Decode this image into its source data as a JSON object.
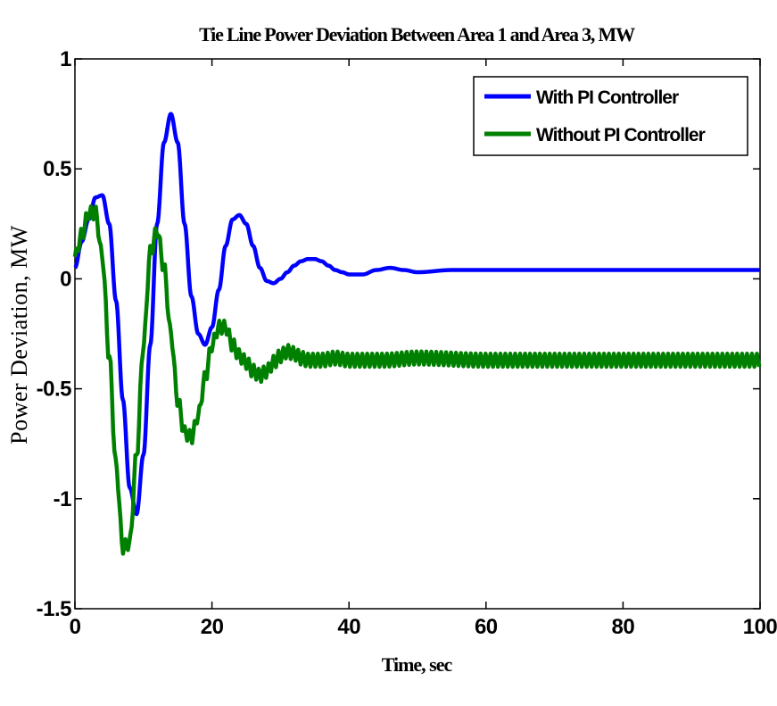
{
  "chart_data": {
    "type": "line",
    "title": "Tie Line Power Deviation Between Area 1 and Area 3, MW",
    "xlabel": "Time, sec",
    "ylabel": "Power Deviation, MW",
    "xlim": [
      0,
      100
    ],
    "ylim": [
      -1.5,
      1
    ],
    "xticks": [
      0,
      20,
      40,
      60,
      80,
      100
    ],
    "xtick_labels": [
      "0",
      "20",
      "40",
      "60",
      "80",
      "100"
    ],
    "yticks": [
      -1.5,
      -1,
      -0.5,
      0,
      0.5,
      1
    ],
    "ytick_labels": [
      "-1.5",
      "-1",
      "-0.5",
      "0",
      "0.5",
      "1"
    ],
    "grid": false,
    "legend_position": "top-right",
    "series": [
      {
        "name": "With PI Controller",
        "color": "#0000ff",
        "x": [
          0,
          1,
          2,
          3,
          4,
          5,
          6,
          7,
          8,
          9,
          10,
          11,
          12,
          13,
          14,
          15,
          16,
          17,
          18,
          19,
          20,
          21,
          22,
          23,
          24,
          25,
          26,
          27,
          28,
          29,
          30,
          31,
          32,
          33,
          34,
          35,
          36,
          37,
          38,
          39,
          40,
          42,
          44,
          46,
          48,
          50,
          55,
          60,
          70,
          80,
          90,
          100
        ],
        "y": [
          0.05,
          0.17,
          0.27,
          0.37,
          0.38,
          0.25,
          -0.1,
          -0.55,
          -0.95,
          -1.07,
          -0.8,
          -0.3,
          0.25,
          0.62,
          0.75,
          0.62,
          0.25,
          -0.08,
          -0.25,
          -0.3,
          -0.22,
          -0.05,
          0.15,
          0.27,
          0.29,
          0.25,
          0.15,
          0.05,
          -0.01,
          -0.02,
          0.0,
          0.03,
          0.06,
          0.08,
          0.09,
          0.09,
          0.08,
          0.06,
          0.04,
          0.03,
          0.02,
          0.02,
          0.04,
          0.05,
          0.04,
          0.03,
          0.04,
          0.04,
          0.04,
          0.04,
          0.04,
          0.04
        ]
      },
      {
        "name": "Without PI Controller",
        "color": "#008000",
        "x": [
          0,
          1,
          2,
          3,
          4,
          5,
          6,
          7,
          8,
          9,
          10,
          11,
          12,
          13,
          14,
          15,
          16,
          17,
          18,
          19,
          20,
          21,
          22,
          23,
          24,
          25,
          26,
          27,
          28,
          29,
          30,
          31,
          32,
          33,
          34,
          35,
          36,
          38,
          40,
          45,
          50,
          60,
          70,
          80,
          90,
          100
        ],
        "y": [
          0.1,
          0.2,
          0.3,
          0.3,
          0.1,
          -0.35,
          -0.85,
          -1.22,
          -1.2,
          -0.8,
          -0.3,
          0.12,
          0.22,
          0.05,
          -0.25,
          -0.55,
          -0.7,
          -0.72,
          -0.62,
          -0.45,
          -0.3,
          -0.22,
          -0.22,
          -0.3,
          -0.35,
          -0.38,
          -0.42,
          -0.44,
          -0.42,
          -0.38,
          -0.35,
          -0.33,
          -0.34,
          -0.36,
          -0.37,
          -0.37,
          -0.37,
          -0.36,
          -0.37,
          -0.37,
          -0.36,
          -0.37,
          -0.37,
          -0.37,
          -0.37,
          -0.37
        ],
        "ripple_amplitude": 0.03
      }
    ]
  }
}
